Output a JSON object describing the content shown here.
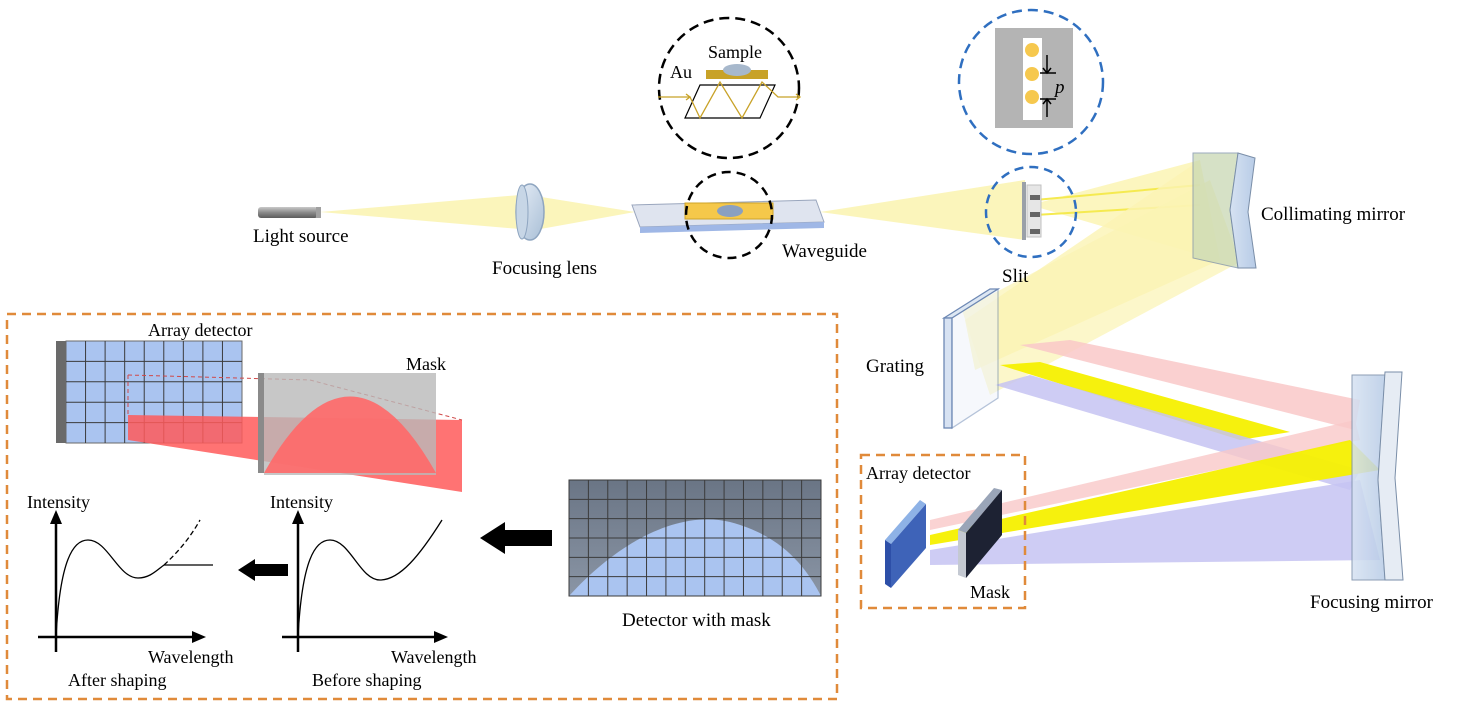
{
  "labels": {
    "light_source": "Light source",
    "focusing_lens": "Focusing lens",
    "waveguide": "Waveguide",
    "slit": "Slit",
    "collimating_mirror": "Collimating mirror",
    "grating": "Grating",
    "focusing_mirror": "Focusing mirror",
    "array_detector": "Array detector",
    "mask": "Mask",
    "sample": "Sample",
    "au": "Au",
    "pitch": "p",
    "inset_array_detector": "Array detector",
    "inset_mask": "Mask",
    "detector_with_mask": "Detector with mask",
    "intensity_before": "Intensity",
    "wavelength_before": "Wavelength",
    "before_shaping": "Before shaping",
    "intensity_after": "Intensity",
    "wavelength_after": "Wavelength",
    "after_shaping": "After shaping"
  },
  "colors": {
    "beam_white": "#fbf4b4",
    "beam_yellow": "#f5f000",
    "beam_red": "#f9c8c8",
    "beam_blue": "#c6c3f2",
    "inset_border": "#e08a3a",
    "zoom_circle_blue": "#2f6fc0",
    "zoom_circle_black": "#000000",
    "gold": "#c8a228",
    "detector_grid": "#aac4f0",
    "mask_red": "#ff7070"
  }
}
